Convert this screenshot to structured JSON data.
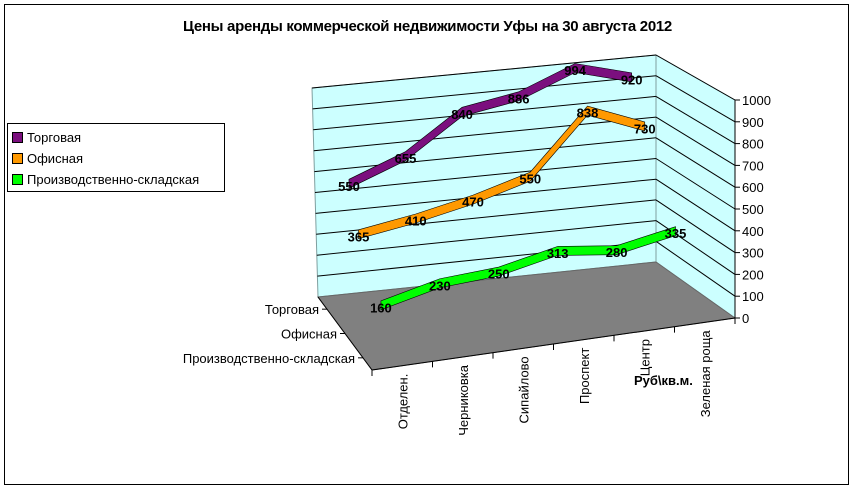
{
  "title": "Цены аренды коммерческой недвижимости Уфы на 30 августа 2012",
  "legend": {
    "items": [
      {
        "label": "Торговая",
        "color": "#7B0F7E"
      },
      {
        "label": "Офисная",
        "color": "#FF9900"
      },
      {
        "label": "Производственно-складская",
        "color": "#00FF00"
      }
    ]
  },
  "axes": {
    "y_ticks": [
      "0",
      "100",
      "200",
      "300",
      "400",
      "500",
      "600",
      "700",
      "800",
      "900",
      "1000"
    ],
    "x_ticks": [
      "Отделен.",
      "Черниковка",
      "Сипайлово",
      "Проспект",
      "Центр",
      "Зеленая роща"
    ],
    "series_axis": [
      "Торговая",
      "Офисная",
      "Производственно-складская"
    ],
    "unit_label": "Руб\\кв.м."
  },
  "data_labels": {
    "torgovaya": [
      "550",
      "655",
      "840",
      "886",
      "994",
      "920"
    ],
    "ofisnaya": [
      "365",
      "410",
      "470",
      "550",
      "838",
      "730"
    ],
    "proizv": [
      "160",
      "230",
      "250",
      "313",
      "280",
      "335"
    ]
  },
  "chart_data": {
    "type": "line",
    "subtype": "3d-line",
    "title": "Цены аренды коммерческой недвижимости Уфы на 30 августа 2012",
    "categories": [
      "Отделен.",
      "Черниковка",
      "Сипайлово",
      "Проспект",
      "Центр",
      "Зеленая роща"
    ],
    "series": [
      {
        "name": "Торговая",
        "color": "#7B0F7E",
        "values": [
          550,
          655,
          840,
          886,
          994,
          920
        ]
      },
      {
        "name": "Офисная",
        "color": "#FF9900",
        "values": [
          365,
          410,
          470,
          550,
          838,
          730
        ]
      },
      {
        "name": "Производственно-складская",
        "color": "#00FF00",
        "values": [
          160,
          230,
          250,
          313,
          280,
          335
        ]
      }
    ],
    "xlabel": "",
    "ylabel": "Руб\\кв.м.",
    "ylim": [
      0,
      1000
    ],
    "y_tick_step": 100,
    "grid": true,
    "legend_position": "left",
    "data_labels": true,
    "wall_color": "#CCFFFF",
    "floor_color": "#808080"
  }
}
